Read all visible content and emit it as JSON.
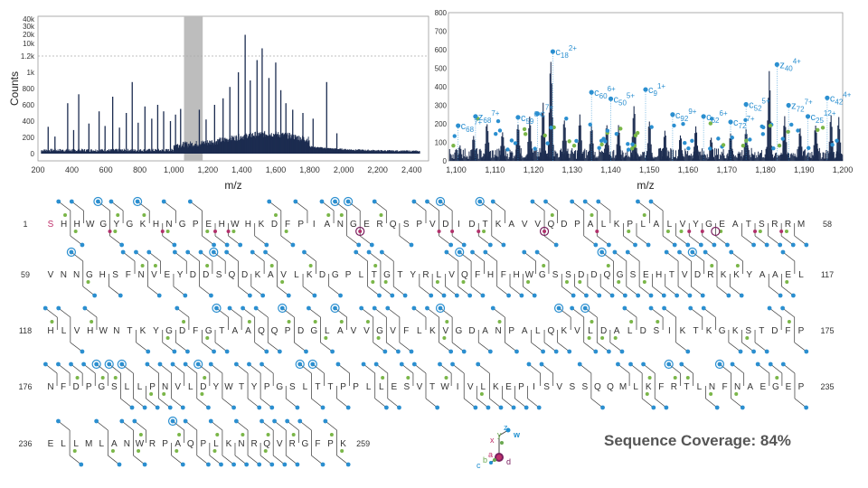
{
  "chart_data": [
    {
      "type": "bar",
      "ylabel": "Counts",
      "xlabel": "m/z",
      "xlim": [
        200,
        2500
      ],
      "x_ticks": [
        "200",
        "400",
        "600",
        "800",
        "1,000",
        "1,200",
        "1,400",
        "1,600",
        "1,800",
        "2,000",
        "2,200",
        "2,400"
      ],
      "y_ticks": [
        "0",
        "200",
        "400",
        "600",
        "800",
        "1k",
        "1.2k",
        "10k",
        "20k",
        "30k",
        "40k"
      ],
      "highlight_range": [
        1060,
        1170
      ],
      "grid": false,
      "peaks": [
        {
          "x": 260,
          "y": 330
        },
        {
          "x": 300,
          "y": 210
        },
        {
          "x": 375,
          "y": 620
        },
        {
          "x": 410,
          "y": 290
        },
        {
          "x": 440,
          "y": 730
        },
        {
          "x": 500,
          "y": 370
        },
        {
          "x": 560,
          "y": 520
        },
        {
          "x": 595,
          "y": 340
        },
        {
          "x": 640,
          "y": 700
        },
        {
          "x": 680,
          "y": 320
        },
        {
          "x": 720,
          "y": 500
        },
        {
          "x": 755,
          "y": 880
        },
        {
          "x": 790,
          "y": 380
        },
        {
          "x": 830,
          "y": 580
        },
        {
          "x": 870,
          "y": 430
        },
        {
          "x": 905,
          "y": 600
        },
        {
          "x": 940,
          "y": 520
        },
        {
          "x": 980,
          "y": 400
        },
        {
          "x": 1010,
          "y": 480
        },
        {
          "x": 1040,
          "y": 550
        },
        {
          "x": 1150,
          "y": 540
        },
        {
          "x": 1190,
          "y": 420
        },
        {
          "x": 1240,
          "y": 600
        },
        {
          "x": 1290,
          "y": 680
        },
        {
          "x": 1330,
          "y": 820
        },
        {
          "x": 1380,
          "y": 1000
        },
        {
          "x": 1420,
          "y": 1420
        },
        {
          "x": 1450,
          "y": 900
        },
        {
          "x": 1490,
          "y": 1150
        },
        {
          "x": 1520,
          "y": 1280
        },
        {
          "x": 1560,
          "y": 930
        },
        {
          "x": 1600,
          "y": 1120
        },
        {
          "x": 1630,
          "y": 780
        },
        {
          "x": 1660,
          "y": 620
        },
        {
          "x": 1700,
          "y": 540
        },
        {
          "x": 1760,
          "y": 500
        },
        {
          "x": 1820,
          "y": 430
        },
        {
          "x": 1900,
          "y": 880
        },
        {
          "x": 1960,
          "y": 250
        }
      ]
    },
    {
      "type": "bar",
      "xlabel": "m/z",
      "xlim": [
        1098,
        1200
      ],
      "ylim": [
        0,
        800
      ],
      "x_ticks": [
        "1,100",
        "1,110",
        "1,120",
        "1,130",
        "1,140",
        "1,150",
        "1,160",
        "1,170",
        "1,180",
        "1,190",
        "1,200"
      ],
      "y_ticks": [
        "0",
        "100",
        "200",
        "300",
        "400",
        "500",
        "600",
        "700",
        "800"
      ],
      "peaks": [
        {
          "x": 1101,
          "y": 90
        },
        {
          "x": 1104.5,
          "y": 150
        },
        {
          "x": 1108,
          "y": 230
        },
        {
          "x": 1112,
          "y": 180
        },
        {
          "x": 1116,
          "y": 210
        },
        {
          "x": 1119,
          "y": 250
        },
        {
          "x": 1122.5,
          "y": 320
        },
        {
          "x": 1124.5,
          "y": 600
        },
        {
          "x": 1128,
          "y": 250
        },
        {
          "x": 1132,
          "y": 260
        },
        {
          "x": 1135,
          "y": 210
        },
        {
          "x": 1139,
          "y": 220
        },
        {
          "x": 1142,
          "y": 210
        },
        {
          "x": 1146,
          "y": 320
        },
        {
          "x": 1150,
          "y": 230
        },
        {
          "x": 1154,
          "y": 170
        },
        {
          "x": 1158,
          "y": 150
        },
        {
          "x": 1162,
          "y": 190
        },
        {
          "x": 1166,
          "y": 140
        },
        {
          "x": 1171,
          "y": 150
        },
        {
          "x": 1175,
          "y": 200
        },
        {
          "x": 1181,
          "y": 490
        },
        {
          "x": 1185,
          "y": 250
        },
        {
          "x": 1189,
          "y": 180
        },
        {
          "x": 1193,
          "y": 210
        },
        {
          "x": 1197,
          "y": 260
        },
        {
          "x": 1199,
          "y": 240
        }
      ],
      "annotations": [
        {
          "ion": "c",
          "num": "68",
          "charge": "7+",
          "x": 1100.5,
          "y": 190
        },
        {
          "ion": "z",
          "num": "68",
          "charge": "7+",
          "x": 1105,
          "y": 240
        },
        {
          "ion": "c",
          "num": "59",
          "charge": "6+",
          "x": 1116,
          "y": 235
        },
        {
          "ion": "c",
          "num": "",
          "charge": "7+",
          "x": 1121,
          "y": 255
        },
        {
          "ion": "c",
          "num": "18",
          "charge": "2+",
          "x": 1125,
          "y": 590
        },
        {
          "ion": "c",
          "num": "60",
          "charge": "6+",
          "x": 1135,
          "y": 370
        },
        {
          "ion": "c",
          "num": "50",
          "charge": "5+",
          "x": 1140,
          "y": 335
        },
        {
          "ion": "c",
          "num": "9",
          "charge": "1+",
          "x": 1149,
          "y": 385
        },
        {
          "ion": "c",
          "num": "92",
          "charge": "9+",
          "x": 1156,
          "y": 250
        },
        {
          "ion": "c",
          "num": "62",
          "charge": "6+",
          "x": 1164,
          "y": 240
        },
        {
          "ion": "c",
          "num": "72",
          "charge": "7+",
          "x": 1171,
          "y": 210
        },
        {
          "ion": "c",
          "num": "52",
          "charge": "5+",
          "x": 1175,
          "y": 305
        },
        {
          "ion": "z",
          "num": "40",
          "charge": "4+",
          "x": 1183,
          "y": 520
        },
        {
          "ion": "z",
          "num": "72",
          "charge": "7+",
          "x": 1186,
          "y": 300
        },
        {
          "ion": "c",
          "num": "25",
          "charge": "12+",
          "x": 1191,
          "y": 240
        },
        {
          "ion": "c",
          "num": "42",
          "charge": "4+",
          "x": 1196,
          "y": 340
        }
      ]
    }
  ],
  "sequence_rows": [
    {
      "start": "1",
      "end": "58",
      "residues": "SHHWGYGKHNGPEHWHKDFPIANGERQSPVDIDTKAVVQDPALKPLALVYGEATSRRM",
      "first_residue_color": "#c0306a"
    },
    {
      "start": "59",
      "end": "117",
      "residues": "VNNGHSFNVEYDDSQDKAVLKDGPLTGTYRLVQFHFHWGSSDDQGSEHTVDRKKYAAEL",
      "first_residue_color": ""
    },
    {
      "start": "118",
      "end": "175",
      "residues": "HLVHWNTKYGDFGTAAQQPDGLAVVGVFLKVGDANPALQKVLDALDSIKTKGKSTDFP",
      "first_residue_color": ""
    },
    {
      "start": "176",
      "end": "235",
      "residues": "NFDPGSLLPNVLDYWTYPGSLTTPPLLESVTWIVLKEPISVSSQQMLKFRTLNFNAEGEP",
      "first_residue_color": ""
    },
    {
      "start": "236",
      "end": "259",
      "residues": "ELLMLANWRPAQPLKNRQVRGFPK",
      "first_residue_color": ""
    }
  ],
  "legend": {
    "labels": [
      "x",
      "y",
      "z",
      "w",
      "a",
      "b",
      "c",
      "d"
    ],
    "colors": {
      "x": "#c0306a",
      "y": "#6aa84f",
      "z": "#1f8fd0",
      "w": "#1f8fd0",
      "a": "#c0306a",
      "b": "#6aa84f",
      "c": "#1f8fd0",
      "d": "#7a2060"
    }
  },
  "coverage": "Sequence Coverage: 84%",
  "colors": {
    "peak": "#1c2c50",
    "blue": "#2b8fd0",
    "green": "#7ab648",
    "magenta": "#b0306a",
    "highlight": "#bdbdbd"
  }
}
